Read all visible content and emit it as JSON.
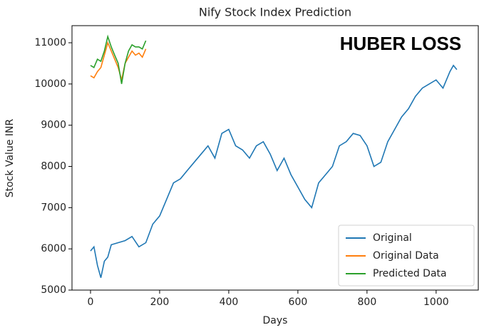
{
  "chart_data": {
    "type": "line",
    "title": "Nify Stock Index Prediction",
    "xlabel": "Days",
    "ylabel": "Stock Value INR",
    "annotation": "HUBER LOSS",
    "xlim": [
      -53.6,
      1122
    ],
    "ylim": [
      5000,
      11415
    ],
    "xticks": [
      0,
      200,
      400,
      600,
      800,
      1000
    ],
    "yticks": [
      5000,
      6000,
      7000,
      8000,
      9000,
      10000,
      11000
    ],
    "legend": "lower right",
    "series": [
      {
        "name": "Original",
        "color": "#1f77b4",
        "x": [
          0,
          10,
          20,
          30,
          40,
          50,
          60,
          80,
          100,
          120,
          140,
          160,
          180,
          200,
          220,
          240,
          260,
          280,
          300,
          320,
          340,
          360,
          380,
          400,
          420,
          440,
          460,
          480,
          500,
          520,
          540,
          560,
          580,
          600,
          620,
          640,
          660,
          680,
          700,
          720,
          740,
          760,
          780,
          800,
          820,
          840,
          860,
          880,
          900,
          920,
          940,
          960,
          980,
          1000,
          1020,
          1040,
          1050,
          1060
        ],
        "values": [
          5950,
          6050,
          5600,
          5300,
          5700,
          5800,
          6100,
          6150,
          6200,
          6300,
          6050,
          6150,
          6600,
          6800,
          7200,
          7600,
          7700,
          7900,
          8100,
          8300,
          8500,
          8200,
          8800,
          8900,
          8500,
          8400,
          8200,
          8500,
          8600,
          8300,
          7900,
          8200,
          7800,
          7500,
          7200,
          7000,
          7600,
          7800,
          8000,
          8500,
          8600,
          8800,
          8750,
          8500,
          8000,
          8100,
          8600,
          8900,
          9200,
          9400,
          9700,
          9900,
          10000,
          10100,
          9900,
          10300,
          10450,
          10350
        ]
      },
      {
        "name": "Original Data",
        "color": "#ff7f0e",
        "x": [
          0,
          10,
          20,
          30,
          40,
          50,
          60,
          70,
          80,
          90,
          100,
          110,
          120,
          130,
          140,
          150,
          160
        ],
        "values": [
          10200,
          10150,
          10300,
          10400,
          10700,
          11000,
          10800,
          10600,
          10400,
          10100,
          10500,
          10650,
          10800,
          10700,
          10750,
          10650,
          10850
        ]
      },
      {
        "name": "Predicted Data",
        "color": "#2ca02c",
        "x": [
          0,
          10,
          20,
          30,
          40,
          50,
          60,
          70,
          80,
          90,
          100,
          110,
          120,
          130,
          140,
          150,
          160
        ],
        "values": [
          10450,
          10400,
          10600,
          10550,
          10800,
          11150,
          10900,
          10700,
          10500,
          10000,
          10500,
          10800,
          10950,
          10900,
          10900,
          10850,
          11050
        ]
      }
    ]
  }
}
